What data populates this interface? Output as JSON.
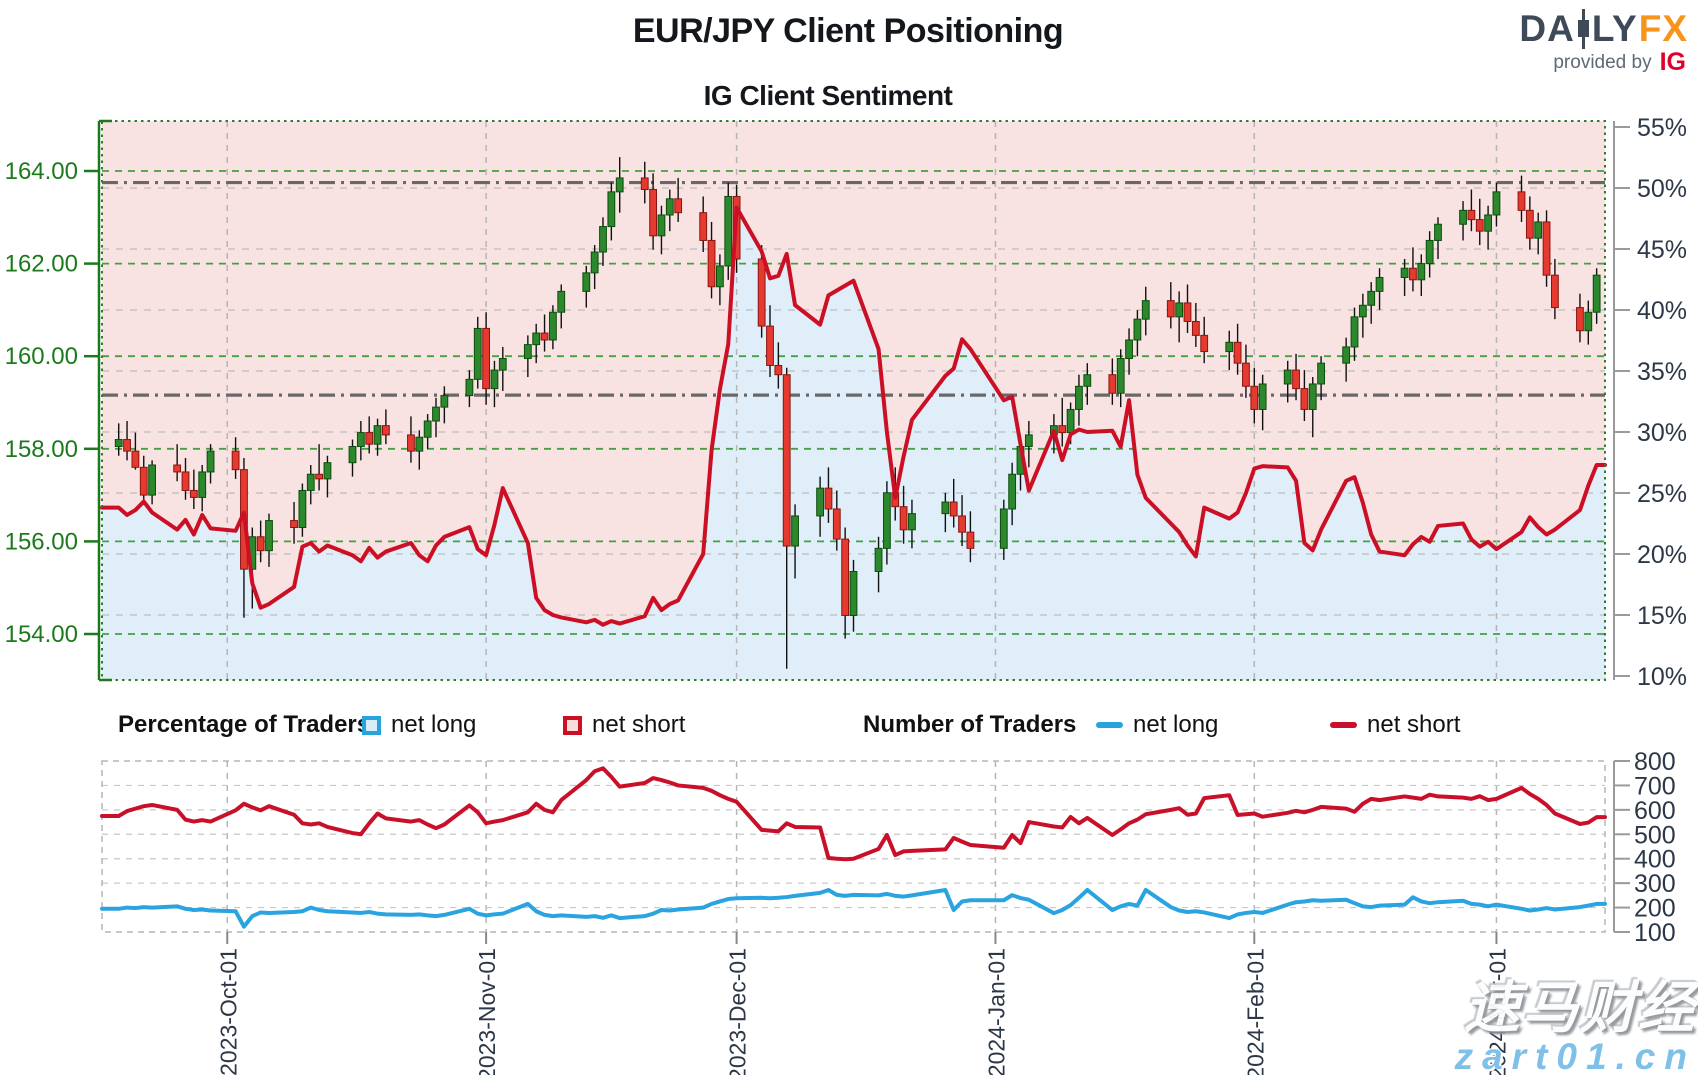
{
  "header": {
    "title": "EUR/JPY Client Positioning",
    "subtitle": "IG Client Sentiment"
  },
  "logo": {
    "part1": "DA",
    "part2": "LY",
    "part3": "FX",
    "tagline": "provided by",
    "ig": "IG",
    "color_dark": "#3e4a57",
    "color_accent": "#f7941d",
    "color_ig": "#e0002a"
  },
  "legend": {
    "pct_group": "Percentage of Traders",
    "num_group": "Number of Traders",
    "net_long": "net long",
    "net_short": "net short"
  },
  "watermark": {
    "line1": "速马财经",
    "line2": "zart01.cn"
  },
  "chart_data": {
    "type": [
      "candlestick",
      "line"
    ],
    "x_domain": [
      "2023-09-16",
      "2024-03-14"
    ],
    "price_axis": {
      "ticks": [
        164,
        162,
        160,
        158,
        156,
        154
      ],
      "labels": [
        "164.00",
        "162.00",
        "160.00",
        "158.00",
        "156.00",
        "154.00"
      ]
    },
    "percent_axis": {
      "ticks": [
        55,
        50,
        45,
        40,
        35,
        30,
        25,
        20,
        15,
        10
      ],
      "labels": [
        "55%",
        "50%",
        "45%",
        "40%",
        "35%",
        "30%",
        "25%",
        "20%",
        "15%",
        "10%"
      ],
      "range": [
        10,
        55
      ]
    },
    "count_axis": {
      "ticks": [
        800,
        700,
        600,
        500,
        400,
        300,
        200,
        100
      ],
      "labels": [
        "800",
        "700",
        "600",
        "500",
        "400",
        "300",
        "200",
        "100"
      ],
      "range": [
        100,
        800
      ]
    },
    "reference_lines": [
      {
        "price": 163.75
      },
      {
        "price": 159.16
      }
    ],
    "months": [
      {
        "date": "2023-10-01",
        "label": "2023-Oct-01"
      },
      {
        "date": "2023-11-01",
        "label": "2023-Nov-01"
      },
      {
        "date": "2023-12-01",
        "label": "2023-Dec-01"
      },
      {
        "date": "2024-01-01",
        "label": "2024-Jan-01"
      },
      {
        "date": "2024-02-01",
        "label": "2024-Feb-01"
      },
      {
        "date": "2024-03-01",
        "label": "2024-Mar-01"
      }
    ],
    "dates": [
      "2023-09-18",
      "2023-09-19",
      "2023-09-20",
      "2023-09-21",
      "2023-09-22",
      "2023-09-25",
      "2023-09-26",
      "2023-09-27",
      "2023-09-28",
      "2023-09-29",
      "2023-10-02",
      "2023-10-03",
      "2023-10-04",
      "2023-10-05",
      "2023-10-06",
      "2023-10-09",
      "2023-10-10",
      "2023-10-11",
      "2023-10-12",
      "2023-10-13",
      "2023-10-16",
      "2023-10-17",
      "2023-10-18",
      "2023-10-19",
      "2023-10-20",
      "2023-10-23",
      "2023-10-24",
      "2023-10-25",
      "2023-10-26",
      "2023-10-27",
      "2023-10-30",
      "2023-10-31",
      "2023-11-01",
      "2023-11-02",
      "2023-11-03",
      "2023-11-06",
      "2023-11-07",
      "2023-11-08",
      "2023-11-09",
      "2023-11-10",
      "2023-11-13",
      "2023-11-14",
      "2023-11-15",
      "2023-11-16",
      "2023-11-17",
      "2023-11-20",
      "2023-11-21",
      "2023-11-22",
      "2023-11-23",
      "2023-11-24",
      "2023-11-27",
      "2023-11-28",
      "2023-11-29",
      "2023-11-30",
      "2023-12-01",
      "2023-12-04",
      "2023-12-05",
      "2023-12-06",
      "2023-12-07",
      "2023-12-08",
      "2023-12-11",
      "2023-12-12",
      "2023-12-13",
      "2023-12-14",
      "2023-12-15",
      "2023-12-18",
      "2023-12-19",
      "2023-12-20",
      "2023-12-21",
      "2023-12-22",
      "2023-12-26",
      "2023-12-27",
      "2023-12-28",
      "2023-12-29",
      "2024-01-02",
      "2024-01-03",
      "2024-01-04",
      "2024-01-05",
      "2024-01-08",
      "2024-01-09",
      "2024-01-10",
      "2024-01-11",
      "2024-01-12",
      "2024-01-15",
      "2024-01-16",
      "2024-01-17",
      "2024-01-18",
      "2024-01-19",
      "2024-01-22",
      "2024-01-23",
      "2024-01-24",
      "2024-01-25",
      "2024-01-26",
      "2024-01-29",
      "2024-01-30",
      "2024-01-31",
      "2024-02-01",
      "2024-02-02",
      "2024-02-05",
      "2024-02-06",
      "2024-02-07",
      "2024-02-08",
      "2024-02-09",
      "2024-02-12",
      "2024-02-13",
      "2024-02-14",
      "2024-02-15",
      "2024-02-16",
      "2024-02-19",
      "2024-02-20",
      "2024-02-21",
      "2024-02-22",
      "2024-02-23",
      "2024-02-26",
      "2024-02-27",
      "2024-02-28",
      "2024-02-29",
      "2024-03-01",
      "2024-03-04",
      "2024-03-05",
      "2024-03-06",
      "2024-03-07",
      "2024-03-08",
      "2024-03-11",
      "2024-03-12",
      "2024-03-13"
    ],
    "ohlc": [
      [
        158.05,
        158.55,
        157.85,
        158.2
      ],
      [
        158.2,
        158.6,
        157.75,
        157.95
      ],
      [
        157.95,
        158.35,
        157.55,
        157.6
      ],
      [
        157.6,
        157.85,
        156.85,
        157.0
      ],
      [
        157.0,
        157.75,
        156.8,
        157.65
      ],
      [
        157.65,
        158.1,
        157.3,
        157.5
      ],
      [
        157.5,
        157.8,
        156.9,
        157.1
      ],
      [
        157.1,
        157.55,
        156.7,
        156.95
      ],
      [
        156.95,
        157.65,
        156.65,
        157.5
      ],
      [
        157.5,
        158.1,
        157.25,
        157.95
      ],
      [
        157.95,
        158.25,
        157.35,
        157.55
      ],
      [
        157.55,
        157.8,
        154.35,
        155.4
      ],
      [
        155.4,
        156.3,
        154.55,
        156.1
      ],
      [
        156.1,
        156.45,
        155.55,
        155.8
      ],
      [
        155.8,
        156.6,
        155.45,
        156.45
      ],
      [
        156.45,
        156.85,
        155.95,
        156.3
      ],
      [
        156.3,
        157.25,
        156.1,
        157.1
      ],
      [
        157.1,
        157.65,
        156.8,
        157.45
      ],
      [
        157.45,
        158.1,
        157.1,
        157.35
      ],
      [
        157.35,
        157.85,
        156.95,
        157.7
      ],
      [
        157.7,
        158.2,
        157.4,
        158.05
      ],
      [
        158.05,
        158.6,
        157.75,
        158.35
      ],
      [
        158.35,
        158.7,
        157.9,
        158.1
      ],
      [
        158.1,
        158.65,
        157.85,
        158.5
      ],
      [
        158.5,
        158.85,
        158.1,
        158.3
      ],
      [
        158.3,
        158.7,
        157.7,
        157.95
      ],
      [
        157.95,
        158.4,
        157.55,
        158.25
      ],
      [
        158.25,
        158.75,
        158.0,
        158.6
      ],
      [
        158.6,
        159.1,
        158.25,
        158.9
      ],
      [
        158.9,
        159.35,
        158.55,
        159.15
      ],
      [
        159.15,
        159.7,
        158.9,
        159.5
      ],
      [
        159.5,
        160.85,
        159.3,
        160.6
      ],
      [
        160.6,
        160.95,
        158.95,
        159.3
      ],
      [
        159.3,
        159.9,
        158.9,
        159.7
      ],
      [
        159.7,
        160.2,
        159.25,
        159.95
      ],
      [
        159.95,
        160.45,
        159.55,
        160.25
      ],
      [
        160.25,
        160.7,
        159.85,
        160.5
      ],
      [
        160.5,
        160.9,
        160.1,
        160.35
      ],
      [
        160.35,
        161.1,
        160.15,
        160.95
      ],
      [
        160.95,
        161.55,
        160.6,
        161.4
      ],
      [
        161.4,
        161.95,
        161.05,
        161.8
      ],
      [
        161.8,
        162.4,
        161.45,
        162.25
      ],
      [
        162.25,
        163.0,
        161.95,
        162.8
      ],
      [
        162.8,
        163.75,
        162.5,
        163.55
      ],
      [
        163.55,
        164.3,
        163.1,
        163.85
      ],
      [
        163.85,
        164.2,
        163.3,
        163.6
      ],
      [
        163.6,
        163.95,
        162.3,
        162.6
      ],
      [
        162.6,
        163.25,
        162.2,
        163.05
      ],
      [
        163.05,
        163.6,
        162.7,
        163.4
      ],
      [
        163.4,
        163.85,
        162.9,
        163.1
      ],
      [
        163.1,
        163.45,
        162.25,
        162.5
      ],
      [
        162.5,
        162.9,
        161.25,
        161.5
      ],
      [
        161.5,
        162.2,
        161.1,
        161.95
      ],
      [
        161.95,
        163.75,
        161.65,
        163.45
      ],
      [
        163.45,
        163.7,
        161.8,
        162.1
      ],
      [
        162.1,
        162.4,
        160.4,
        160.65
      ],
      [
        160.65,
        161.1,
        159.55,
        159.8
      ],
      [
        159.8,
        160.3,
        159.3,
        159.6
      ],
      [
        159.6,
        159.75,
        153.25,
        155.9
      ],
      [
        155.9,
        156.8,
        155.2,
        156.55
      ],
      [
        156.55,
        157.4,
        156.1,
        157.15
      ],
      [
        157.15,
        157.6,
        156.4,
        156.7
      ],
      [
        156.7,
        157.1,
        155.8,
        156.05
      ],
      [
        156.05,
        156.3,
        153.9,
        154.4
      ],
      [
        154.4,
        155.6,
        154.05,
        155.35
      ],
      [
        155.35,
        156.1,
        154.9,
        155.85
      ],
      [
        155.85,
        157.3,
        155.5,
        157.05
      ],
      [
        157.05,
        157.6,
        156.45,
        156.75
      ],
      [
        156.75,
        157.2,
        155.95,
        156.25
      ],
      [
        156.25,
        156.9,
        155.85,
        156.6
      ],
      [
        156.6,
        157.05,
        156.2,
        156.85
      ],
      [
        156.85,
        157.35,
        156.3,
        156.55
      ],
      [
        156.55,
        157.0,
        155.9,
        156.2
      ],
      [
        156.2,
        156.65,
        155.55,
        155.85
      ],
      [
        155.85,
        156.9,
        155.6,
        156.7
      ],
      [
        156.7,
        157.7,
        156.35,
        157.45
      ],
      [
        157.45,
        158.25,
        157.1,
        158.05
      ],
      [
        158.05,
        158.6,
        157.6,
        158.3
      ],
      [
        158.3,
        158.75,
        157.9,
        158.5
      ],
      [
        158.5,
        159.1,
        158.05,
        158.35
      ],
      [
        158.35,
        159.0,
        158.1,
        158.85
      ],
      [
        158.85,
        159.6,
        158.5,
        159.35
      ],
      [
        159.35,
        159.85,
        158.95,
        159.6
      ],
      [
        159.6,
        159.95,
        158.95,
        159.2
      ],
      [
        159.2,
        160.15,
        158.9,
        159.95
      ],
      [
        159.95,
        160.6,
        159.6,
        160.35
      ],
      [
        160.35,
        161.0,
        160.0,
        160.8
      ],
      [
        160.8,
        161.5,
        160.45,
        161.2
      ],
      [
        161.2,
        161.6,
        160.6,
        160.85
      ],
      [
        160.85,
        161.4,
        160.3,
        161.15
      ],
      [
        161.15,
        161.55,
        160.5,
        160.75
      ],
      [
        160.75,
        161.15,
        160.2,
        160.45
      ],
      [
        160.45,
        160.85,
        159.85,
        160.1
      ],
      [
        160.1,
        160.55,
        159.7,
        160.3
      ],
      [
        160.3,
        160.7,
        159.6,
        159.85
      ],
      [
        159.85,
        160.25,
        159.1,
        159.35
      ],
      [
        159.35,
        159.75,
        158.55,
        158.85
      ],
      [
        158.85,
        159.6,
        158.4,
        159.4
      ],
      [
        159.4,
        159.9,
        159.0,
        159.7
      ],
      [
        159.7,
        160.05,
        159.05,
        159.3
      ],
      [
        159.3,
        159.7,
        158.6,
        158.85
      ],
      [
        158.85,
        159.55,
        158.25,
        159.4
      ],
      [
        159.4,
        160.0,
        159.05,
        159.85
      ],
      [
        159.85,
        160.4,
        159.45,
        160.2
      ],
      [
        160.2,
        161.05,
        159.9,
        160.85
      ],
      [
        160.85,
        161.35,
        160.4,
        161.1
      ],
      [
        161.1,
        161.6,
        160.7,
        161.4
      ],
      [
        161.4,
        161.9,
        161.0,
        161.7
      ],
      [
        161.7,
        162.1,
        161.3,
        161.9
      ],
      [
        161.9,
        162.35,
        161.4,
        161.65
      ],
      [
        161.65,
        162.2,
        161.3,
        162.0
      ],
      [
        162.0,
        162.7,
        161.7,
        162.5
      ],
      [
        162.5,
        163.0,
        162.1,
        162.85
      ],
      [
        162.85,
        163.35,
        162.5,
        163.15
      ],
      [
        163.15,
        163.6,
        162.7,
        162.95
      ],
      [
        162.95,
        163.4,
        162.4,
        162.7
      ],
      [
        162.7,
        163.25,
        162.3,
        163.05
      ],
      [
        163.05,
        163.75,
        162.8,
        163.55
      ],
      [
        163.55,
        163.9,
        162.9,
        163.15
      ],
      [
        163.15,
        163.45,
        162.3,
        162.55
      ],
      [
        162.55,
        163.1,
        162.2,
        162.9
      ],
      [
        162.9,
        163.15,
        161.5,
        161.75
      ],
      [
        161.75,
        162.1,
        160.8,
        161.05
      ],
      [
        161.05,
        161.35,
        160.3,
        160.55
      ],
      [
        160.55,
        161.2,
        160.25,
        160.95
      ],
      [
        160.95,
        161.9,
        160.7,
        161.75
      ]
    ],
    "net_short_percent": [
      23.8,
      23.2,
      23.6,
      24.3,
      23.4,
      22.0,
      22.8,
      21.6,
      23.2,
      22.1,
      21.9,
      23.4,
      17.6,
      15.6,
      15.9,
      17.3,
      20.6,
      20.9,
      20.2,
      20.7,
      19.9,
      19.4,
      20.5,
      19.7,
      20.2,
      20.9,
      19.9,
      19.4,
      20.7,
      21.4,
      22.2,
      20.4,
      19.9,
      22.4,
      25.4,
      20.9,
      16.4,
      15.4,
      15.0,
      14.8,
      14.4,
      14.6,
      14.2,
      14.5,
      14.3,
      14.9,
      16.4,
      15.4,
      15.9,
      16.2,
      20.0,
      28.5,
      33.5,
      37.2,
      48.4,
      44.8,
      42.6,
      42.8,
      44.6,
      40.4,
      38.8,
      41.2,
      41.6,
      42.0,
      42.4,
      36.8,
      30.0,
      24.6,
      28.0,
      31.0,
      34.6,
      35.2,
      37.6,
      36.8,
      32.6,
      32.9,
      29.0,
      25.2,
      30.1,
      27.7,
      29.8,
      30.2,
      30.0,
      30.1,
      28.8,
      32.6,
      26.5,
      24.6,
      22.5,
      21.8,
      20.7,
      19.8,
      23.8,
      22.9,
      23.4,
      25.0,
      27.0,
      27.2,
      27.1,
      26.0,
      20.9,
      20.3,
      22.0,
      26.0,
      26.3,
      24.2,
      21.6,
      20.2,
      19.9,
      20.8,
      21.4,
      21.0,
      22.3,
      22.5,
      21.2,
      20.6,
      21.0,
      20.4,
      21.8,
      23.0,
      22.2,
      21.6,
      22.0,
      23.6,
      25.6,
      27.3
    ],
    "traders_net_short": [
      575,
      595,
      605,
      615,
      620,
      600,
      560,
      552,
      558,
      552,
      598,
      625,
      610,
      598,
      615,
      580,
      545,
      540,
      545,
      530,
      505,
      500,
      545,
      585,
      565,
      552,
      558,
      540,
      525,
      540,
      618,
      590,
      545,
      552,
      558,
      590,
      625,
      600,
      590,
      640,
      722,
      758,
      770,
      735,
      695,
      710,
      730,
      722,
      712,
      700,
      690,
      678,
      660,
      645,
      633,
      518,
      515,
      512,
      545,
      530,
      528,
      403,
      400,
      398,
      400,
      440,
      497,
      415,
      430,
      432,
      438,
      485,
      470,
      456,
      445,
      497,
      464,
      550,
      532,
      528,
      571,
      545,
      567,
      497,
      520,
      545,
      560,
      582,
      600,
      607,
      580,
      585,
      648,
      660,
      579,
      582,
      585,
      572,
      588,
      596,
      590,
      600,
      612,
      605,
      592,
      625,
      645,
      640,
      655,
      650,
      645,
      662,
      655,
      650,
      645,
      656,
      640,
      645,
      690,
      665,
      645,
      620,
      585,
      542,
      548,
      570
    ],
    "traders_net_long": [
      195,
      200,
      198,
      202,
      200,
      205,
      195,
      190,
      192,
      188,
      185,
      122,
      165,
      180,
      178,
      182,
      185,
      200,
      190,
      185,
      180,
      178,
      182,
      175,
      172,
      170,
      172,
      168,
      165,
      170,
      195,
      175,
      168,
      172,
      175,
      215,
      185,
      170,
      165,
      168,
      162,
      165,
      158,
      168,
      157,
      165,
      175,
      190,
      188,
      192,
      200,
      215,
      225,
      235,
      238,
      240,
      238,
      240,
      243,
      248,
      260,
      272,
      252,
      248,
      252,
      250,
      256,
      248,
      245,
      250,
      272,
      190,
      225,
      230,
      230,
      251,
      239,
      232,
      177,
      190,
      210,
      240,
      272,
      190,
      205,
      215,
      208,
      272,
      202,
      188,
      182,
      185,
      180,
      157,
      172,
      178,
      182,
      178,
      212,
      222,
      225,
      230,
      228,
      232,
      218,
      205,
      202,
      208,
      212,
      242,
      225,
      218,
      222,
      228,
      215,
      212,
      205,
      212,
      195,
      188,
      192,
      198,
      192,
      202,
      208,
      215
    ],
    "colors": {
      "bull": "#2c882c",
      "bull_border": "#0d4d0d",
      "bear": "#e53a30",
      "bear_border": "#8c1410",
      "wick": "#111111",
      "sentiment_line": "#cb1026",
      "area_above_line": "#f8e2e2",
      "area_below_line": "#dfeef8",
      "price_axis": "#1c7a1c",
      "price_grid": "#43a043",
      "percent_grid": "#bdbdbd",
      "month_grid": "#b5b5b5",
      "reference_line": "#686868",
      "axis_text": "#2c3848",
      "traders_long": "#2aa3e1",
      "traders_short": "#c9102a"
    }
  }
}
